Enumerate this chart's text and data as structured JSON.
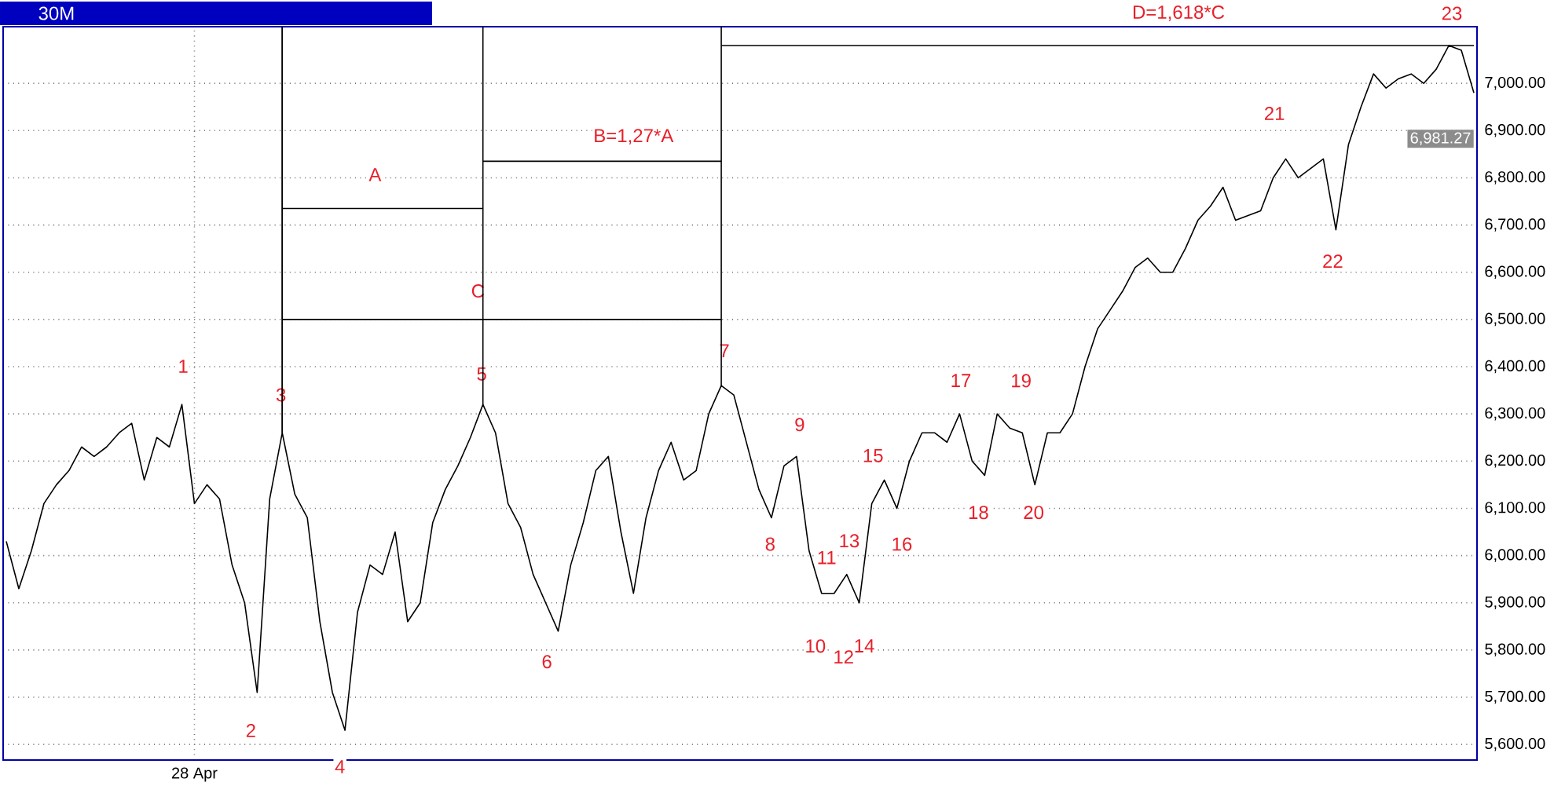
{
  "chart_data": {
    "type": "line",
    "title": "30M",
    "categories": [
      null,
      null,
      null,
      null,
      null,
      null,
      null,
      null,
      null,
      null,
      null,
      null,
      null,
      null,
      null,
      "28 Apr",
      null,
      null,
      null,
      null,
      null,
      null,
      null,
      null,
      null,
      null,
      null,
      null,
      null,
      null,
      null,
      null,
      null,
      null,
      null,
      null,
      null,
      null,
      null,
      null,
      null,
      null,
      null,
      null,
      null,
      null,
      null,
      null,
      null,
      null,
      null,
      null,
      null,
      null,
      null,
      null,
      null,
      null,
      null,
      null,
      null,
      null,
      null,
      null,
      null,
      null,
      null,
      null,
      null,
      null,
      null,
      null,
      null,
      null,
      null,
      null,
      null,
      null,
      null,
      null,
      null,
      null,
      null,
      null,
      null,
      null,
      null,
      null,
      null,
      null,
      null,
      null,
      null,
      null,
      null,
      null,
      null,
      null,
      null,
      null,
      null,
      null,
      null,
      null,
      null,
      null,
      null,
      null,
      null,
      null,
      null,
      null,
      null,
      null,
      null,
      null,
      null,
      null
    ],
    "series": [
      {
        "color": "#000000",
        "values": [
          6030,
          5930,
          6010,
          6110,
          6150,
          6180,
          6230,
          6210,
          6230,
          6260,
          6280,
          6160,
          6250,
          6230,
          6320,
          6110,
          6150,
          6120,
          5980,
          5900,
          5710,
          6120,
          6260,
          6130,
          6080,
          5860,
          5710,
          5630,
          5880,
          5980,
          5960,
          6050,
          5860,
          5900,
          6070,
          6140,
          6190,
          6250,
          6320,
          6260,
          6110,
          6060,
          5960,
          5900,
          5840,
          5980,
          6070,
          6180,
          6210,
          6050,
          5920,
          6080,
          6180,
          6240,
          6160,
          6180,
          6300,
          6360,
          6340,
          6240,
          6140,
          6080,
          6190,
          6210,
          6010,
          5920,
          5920,
          5960,
          5900,
          6110,
          6160,
          6100,
          6200,
          6260,
          6260,
          6240,
          6300,
          6200,
          6170,
          6300,
          6270,
          6260,
          6150,
          6260,
          6260,
          6300,
          6400,
          6480,
          6520,
          6560,
          6610,
          6630,
          6600,
          6600,
          6650,
          6710,
          6740,
          6780,
          6710,
          6720,
          6730,
          6800,
          6840,
          6800,
          6820,
          6840,
          6690,
          6870,
          6950,
          7020,
          6990,
          7010,
          7020,
          7000,
          7030,
          7080,
          7070,
          6980
        ]
      },
      {
        "color": "#000000",
        "values": [
          null,
          null,
          null,
          null,
          null,
          null,
          null,
          null,
          null,
          null,
          null,
          null,
          null,
          null,
          null,
          null,
          null,
          null,
          null,
          null,
          null,
          null,
          6735,
          6735,
          6735,
          6735,
          6735,
          6735,
          6735,
          6735,
          6735,
          6735,
          6735,
          6735,
          6735,
          6735,
          6735,
          6735,
          6735,
          null,
          null,
          null,
          null,
          null,
          null,
          null,
          null,
          null,
          null,
          null,
          null,
          null,
          null,
          null,
          null,
          null,
          null,
          null,
          null,
          null,
          null,
          null,
          null,
          null,
          null,
          null,
          null,
          null,
          null,
          null,
          null,
          null,
          null,
          null,
          null,
          null,
          null,
          null,
          null,
          null,
          null,
          null,
          null,
          null,
          null,
          null,
          null,
          null,
          null,
          null,
          null,
          null,
          null,
          null,
          null,
          null,
          null,
          null,
          null,
          null,
          null,
          null,
          null,
          null,
          null,
          null,
          null,
          null,
          null,
          null,
          null,
          null,
          null,
          null,
          null,
          null,
          null,
          null
        ]
      },
      {
        "color": "#000000",
        "values": [
          null,
          null,
          null,
          null,
          null,
          null,
          null,
          null,
          null,
          null,
          null,
          null,
          null,
          null,
          null,
          null,
          null,
          null,
          null,
          null,
          null,
          null,
          6500,
          6500,
          6500,
          6500,
          6500,
          6500,
          6500,
          6500,
          6500,
          6500,
          6500,
          6500,
          6500,
          6500,
          6500,
          6500,
          6500,
          6500,
          6500,
          6500,
          6500,
          6500,
          6500,
          6500,
          6500,
          6500,
          6500,
          6500,
          6500,
          6500,
          6500,
          6500,
          6500,
          6500,
          6500,
          6500,
          null,
          null,
          null,
          null,
          null,
          null,
          null,
          null,
          null,
          null,
          null,
          null,
          null,
          null,
          null,
          null,
          null,
          null,
          null,
          null,
          null,
          null,
          null,
          null,
          null,
          null,
          null,
          null,
          null,
          null,
          null,
          null,
          null,
          null,
          null,
          null,
          null,
          null,
          null,
          null,
          null,
          null,
          null,
          null,
          null,
          null,
          null,
          null,
          null,
          null,
          null,
          null,
          null,
          null,
          null,
          null,
          null,
          null,
          null,
          null
        ]
      },
      {
        "color": "#000000",
        "values": [
          null,
          null,
          null,
          null,
          null,
          null,
          null,
          null,
          null,
          null,
          null,
          null,
          null,
          null,
          null,
          null,
          null,
          null,
          null,
          null,
          null,
          null,
          null,
          null,
          null,
          null,
          null,
          null,
          null,
          null,
          null,
          null,
          null,
          null,
          null,
          null,
          null,
          null,
          6835,
          6835,
          6835,
          6835,
          6835,
          6835,
          6835,
          6835,
          6835,
          6835,
          6835,
          6835,
          6835,
          6835,
          6835,
          6835,
          6835,
          6835,
          6835,
          6835,
          null,
          null,
          null,
          null,
          null,
          null,
          null,
          null,
          null,
          null,
          null,
          null,
          null,
          null,
          null,
          null,
          null,
          null,
          null,
          null,
          null,
          null,
          null,
          null,
          null,
          null,
          null,
          null,
          null,
          null,
          null,
          null,
          null,
          null,
          null,
          null,
          null,
          null,
          null,
          null,
          null,
          null,
          null,
          null,
          null,
          null,
          null,
          null,
          null,
          null,
          null,
          null,
          null,
          null,
          null,
          null,
          null,
          null,
          null,
          null
        ]
      },
      {
        "color": "#000000",
        "values": [
          null,
          null,
          null,
          null,
          null,
          null,
          null,
          null,
          null,
          null,
          null,
          null,
          null,
          null,
          null,
          null,
          null,
          null,
          null,
          null,
          null,
          null,
          null,
          null,
          null,
          null,
          null,
          null,
          null,
          null,
          null,
          null,
          null,
          null,
          null,
          null,
          null,
          null,
          null,
          null,
          null,
          null,
          null,
          null,
          null,
          null,
          null,
          null,
          null,
          null,
          null,
          null,
          null,
          null,
          null,
          null,
          null,
          7080,
          7080,
          7080,
          7080,
          7080,
          7080,
          7080,
          7080,
          7080,
          7080,
          7080,
          7080,
          7080,
          7080,
          7080,
          7080,
          7080,
          7080,
          7080,
          7080,
          7080,
          7080,
          7080,
          7080,
          7080,
          7080,
          7080,
          7080,
          7080,
          7080,
          7080,
          7080,
          7080,
          7080,
          7080,
          7080,
          7080,
          7080,
          7080,
          7080,
          7080,
          7080,
          7080,
          7080,
          7080,
          7080,
          7080,
          7080,
          7080,
          7080,
          7080,
          7080,
          7080,
          7080,
          7080,
          7080,
          7080,
          7080,
          7080,
          7080,
          7080
        ]
      }
    ],
    "ylim": [
      5567,
      7120
    ],
    "yticks": [
      {
        "value": 5600,
        "label": "5,600.00"
      },
      {
        "value": 5700,
        "label": "5,700.00"
      },
      {
        "value": 5800,
        "label": "5,800.00"
      },
      {
        "value": 5900,
        "label": "5,900.00"
      },
      {
        "value": 6000,
        "label": "6,000.00"
      },
      {
        "value": 6100,
        "label": "6,100.00"
      },
      {
        "value": 6200,
        "label": "6,200.00"
      },
      {
        "value": 6300,
        "label": "6,300.00"
      },
      {
        "value": 6400,
        "label": "6,400.00"
      },
      {
        "value": 6500,
        "label": "6,500.00"
      },
      {
        "value": 6600,
        "label": "6,600.00"
      },
      {
        "value": 6700,
        "label": "6,700.00"
      },
      {
        "value": 6800,
        "label": "6,800.00"
      },
      {
        "value": 6900,
        "label": "6,900.00"
      },
      {
        "value": 7000,
        "label": "7,000.00"
      }
    ],
    "grid": true,
    "annotations": [
      "1",
      "2",
      "3",
      "4",
      "5",
      "6",
      "7",
      "8",
      "9",
      "10",
      "11",
      "12",
      "13",
      "14",
      "15",
      "16",
      "17",
      "18",
      "19",
      "20",
      "21",
      "22",
      "A",
      "B=1,27*A",
      "C",
      "D=1,618*C",
      "23",
      "6,981.27"
    ]
  }
}
